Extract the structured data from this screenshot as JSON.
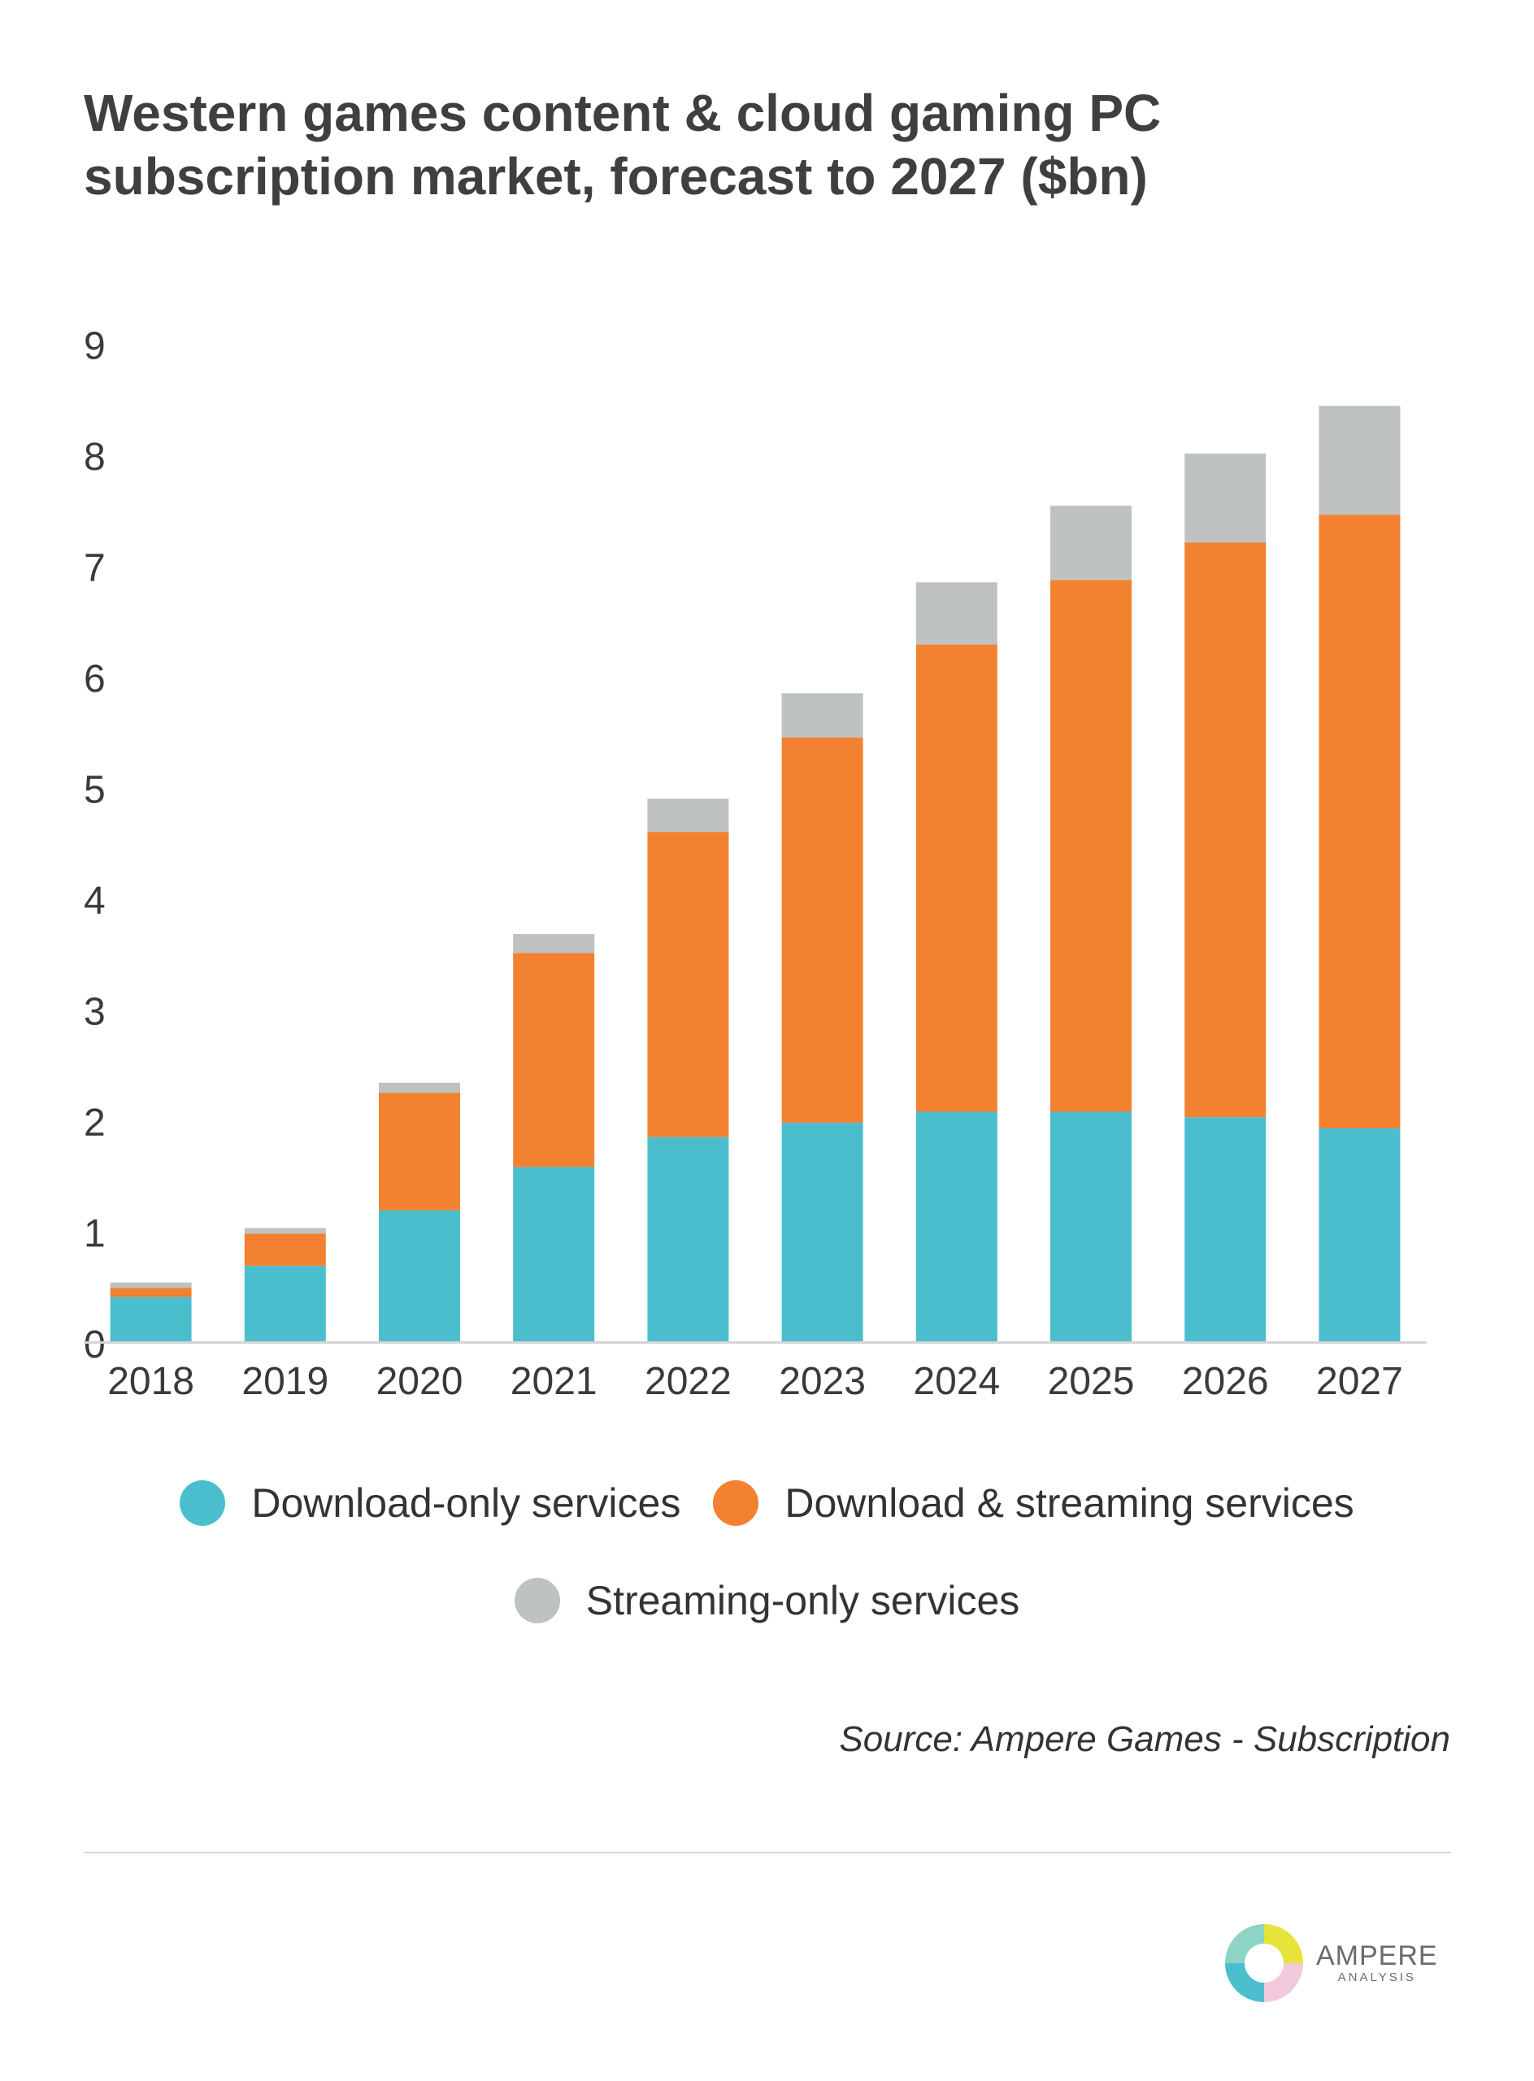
{
  "page": {
    "title": "Western games content & cloud gaming PC subscription market, forecast to 2027 ($bn)",
    "source": "Source: Ampere Games - Subscription",
    "logo": {
      "name": "AMPERE",
      "sub": "ANALYSIS"
    }
  },
  "chart_data": {
    "type": "bar",
    "stacked": true,
    "title": "Western games content & cloud gaming PC subscription market, forecast to 2027 ($bn)",
    "xlabel": "",
    "ylabel": "",
    "ylim": [
      0,
      9
    ],
    "yticks": [
      "0",
      "1",
      "2",
      "3",
      "4",
      "5",
      "6",
      "7",
      "8",
      "9"
    ],
    "grid": false,
    "legend_position": "bottom",
    "categories": [
      "2018",
      "2019",
      "2020",
      "2021",
      "2022",
      "2023",
      "2024",
      "2025",
      "2026",
      "2027"
    ],
    "series": [
      {
        "name": "Download-only services",
        "color": "#4bbece",
        "values": [
          0.4,
          0.68,
          1.18,
          1.57,
          1.84,
          1.97,
          2.07,
          2.07,
          2.02,
          1.92
        ]
      },
      {
        "name": "Download & streaming services",
        "color": "#f28130",
        "values": [
          0.08,
          0.29,
          1.06,
          1.93,
          2.75,
          3.47,
          4.21,
          4.79,
          5.18,
          5.53
        ]
      },
      {
        "name": "Streaming-only services",
        "color": "#bfc2c2",
        "values": [
          0.05,
          0.05,
          0.09,
          0.17,
          0.3,
          0.4,
          0.56,
          0.67,
          0.8,
          0.98
        ]
      }
    ]
  }
}
